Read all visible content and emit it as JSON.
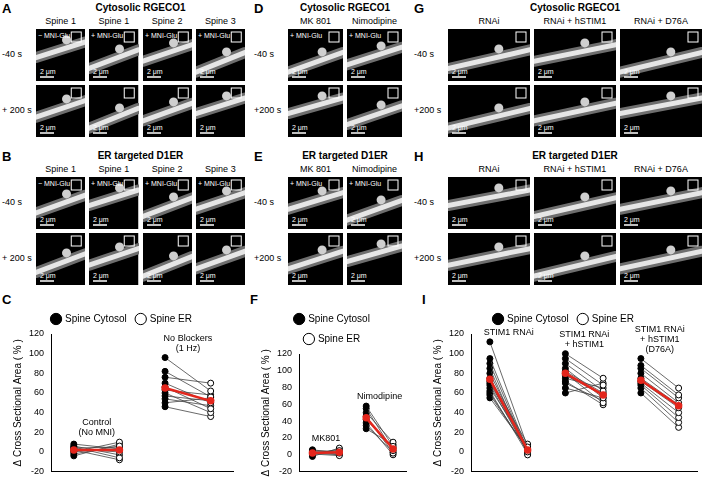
{
  "image_panels": [
    {
      "letter": "A",
      "title": "Cytosolic RGECO1",
      "columns": [
        {
          "head": "Spine 1",
          "inner": "− MNI-Glu"
        },
        {
          "head": "Spine 1",
          "inner": "+ MNI-Glu"
        },
        {
          "head": "Spine 2",
          "inner": "+ MNI-Glu"
        },
        {
          "head": "Spine 3",
          "inner": "+ MNI-Glu"
        }
      ],
      "rows": [
        "-40 s",
        "+ 200 s"
      ],
      "scale_bar": "2 μm"
    },
    {
      "letter": "B",
      "title": "ER targeted D1ER",
      "columns": [
        {
          "head": "Spine 1",
          "inner": "− MNI-Glu"
        },
        {
          "head": "Spine 1",
          "inner": "+ MNI-Glu"
        },
        {
          "head": "Spine 2",
          "inner": "+ MNI-Glu"
        },
        {
          "head": "Spine 3",
          "inner": "+ MNI-Glu"
        }
      ],
      "rows": [
        "-40 s",
        "+ 200 s"
      ],
      "scale_bar": "2 μm"
    },
    {
      "letter": "D",
      "title": "Cytosolic RGECO1",
      "columns": [
        {
          "head": "MK 801",
          "inner": "+ MNI-Glu"
        },
        {
          "head": "Nimodipine",
          "inner": "+ MNI-Glu"
        }
      ],
      "rows": [
        "-40 s",
        "+200 s"
      ],
      "scale_bar": "2 μm"
    },
    {
      "letter": "E",
      "title": "ER targeted D1ER",
      "columns": [
        {
          "head": "MK 801",
          "inner": "+ MNI-Glu"
        },
        {
          "head": "Nimodipine",
          "inner": "+ MNI-Glu"
        }
      ],
      "rows": [
        "-40 s",
        "+200 s"
      ],
      "scale_bar": "2 μm"
    },
    {
      "letter": "G",
      "title": "Cytosolic RGECO1",
      "columns": [
        {
          "head": "RNAi"
        },
        {
          "head": "RNAi + hSTIM1"
        },
        {
          "head": "RNAi + D76A"
        }
      ],
      "rows": [
        "-40 s",
        "+200 s"
      ],
      "scale_bar": "2 μm"
    },
    {
      "letter": "H",
      "title": "ER targeted D1ER",
      "columns": [
        {
          "head": "RNAi"
        },
        {
          "head": "RNAi + hSTIM1"
        },
        {
          "head": "RNAi + D76A"
        }
      ],
      "rows": [
        "-40 s",
        "+200 s"
      ],
      "scale_bar": "2 μm"
    }
  ],
  "chart_data": [
    {
      "panel": "C",
      "type": "line",
      "categories": [
        null,
        null,
        null,
        null
      ],
      "ylabel": "Δ Cross Sectional Area ( % )",
      "ylim": [
        -20,
        120
      ],
      "yticks": [
        -20,
        0,
        20,
        40,
        60,
        80,
        100,
        120
      ],
      "grid": false,
      "tick_labels": "y",
      "legend": "top",
      "series": [
        {
          "name": "Spine Cytosol",
          "color": "#000000",
          "marker": "filled"
        },
        {
          "name": "Spine ER",
          "color": "#000000",
          "marker": "open"
        }
      ],
      "groups": [
        {
          "label": [
            "Control",
            "(No MNI)"
          ],
          "spine_cytosol": [
            3,
            -2,
            5,
            0,
            8,
            2,
            -4,
            1,
            6,
            4
          ],
          "spine_er": [
            0,
            6,
            -6,
            10,
            3,
            -8,
            8,
            2,
            -3,
            5
          ],
          "mean": {
            "values": [
              2,
              2
            ],
            "color": "#e3261c"
          }
        },
        {
          "label": [
            "No Blockers",
            "(1 Hz)"
          ],
          "spine_cytosol": [
            96,
            82,
            76,
            70,
            66,
            63,
            60,
            57,
            54,
            50,
            46
          ],
          "spine_er": [
            62,
            56,
            70,
            50,
            44,
            58,
            40,
            52,
            47,
            55,
            36
          ],
          "mean": {
            "values": [
              65,
              52
            ],
            "color": "#e3261c"
          }
        }
      ]
    },
    {
      "panel": "F",
      "type": "line",
      "categories": [
        null,
        null,
        null,
        null
      ],
      "ylabel": "Δ Cross Sectional Area ( % )",
      "ylim": [
        -20,
        120
      ],
      "yticks": [
        -20,
        0,
        20,
        40,
        60,
        80,
        100,
        120
      ],
      "grid": false,
      "tick_labels": "y",
      "legend": "top",
      "series": [
        {
          "name": "Spine Cytosol",
          "color": "#000000",
          "marker": "filled"
        },
        {
          "name": "Spine ER",
          "color": "#000000",
          "marker": "open"
        }
      ],
      "groups": [
        {
          "label": [
            "MK801"
          ],
          "spine_cytosol": [
            6,
            4,
            1,
            -2,
            2,
            5,
            0,
            3
          ],
          "spine_er": [
            2,
            5,
            -1,
            8,
            0,
            3,
            7,
            1
          ],
          "mean": {
            "values": [
              2,
              3
            ],
            "color": "#e3261c"
          }
        },
        {
          "label": [
            "Nimodipine"
          ],
          "spine_cytosol": [
            58,
            55,
            50,
            46,
            42,
            38,
            35,
            31
          ],
          "spine_er": [
            10,
            5,
            15,
            2,
            8,
            0,
            3,
            12
          ],
          "mean": {
            "values": [
              44,
              7
            ],
            "color": "#e3261c"
          }
        }
      ]
    },
    {
      "panel": "I",
      "type": "line",
      "categories": [
        null,
        null,
        null,
        null,
        null,
        null
      ],
      "ylabel": "Δ Cross Sectional Area ( % )",
      "ylim": [
        -20,
        120
      ],
      "yticks": [
        -20,
        0,
        20,
        40,
        60,
        80,
        100,
        120
      ],
      "grid": false,
      "tick_labels": "y",
      "legend": "top",
      "series": [
        {
          "name": "Spine Cytosol",
          "color": "#000000",
          "marker": "filled"
        },
        {
          "name": "Spine ER",
          "color": "#000000",
          "marker": "open"
        }
      ],
      "groups": [
        {
          "label": [
            "STIM1 RNAi"
          ],
          "spine_cytosol": [
            112,
            95,
            90,
            85,
            80,
            75,
            72,
            70,
            68,
            65,
            62,
            60,
            58,
            55
          ],
          "spine_er": [
            5,
            2,
            0,
            -3,
            3,
            8,
            -1,
            4,
            0,
            6,
            -2,
            1,
            2,
            3
          ],
          "mean": {
            "values": [
              74,
              2
            ],
            "color": "#e3261c"
          }
        },
        {
          "label": [
            "STIM1 RNAi",
            "+ hSTIM1"
          ],
          "spine_cytosol": [
            100,
            95,
            90,
            85,
            82,
            80,
            78,
            75,
            72,
            70,
            65,
            60
          ],
          "spine_er": [
            75,
            68,
            62,
            55,
            60,
            50,
            58,
            65,
            48,
            52,
            55,
            70
          ],
          "mean": {
            "values": [
              80,
              58
            ],
            "color": "#e3261c"
          }
        },
        {
          "label": [
            "STIM1 RNAi",
            "+ hSTIM1",
            "(D76A)"
          ],
          "spine_cytosol": [
            95,
            88,
            85,
            80,
            75,
            72,
            70,
            68,
            65,
            60
          ],
          "spine_er": [
            65,
            58,
            55,
            50,
            48,
            45,
            40,
            35,
            30,
            25
          ],
          "mean": {
            "values": [
              73,
              47
            ],
            "color": "#e3261c"
          }
        }
      ]
    }
  ]
}
